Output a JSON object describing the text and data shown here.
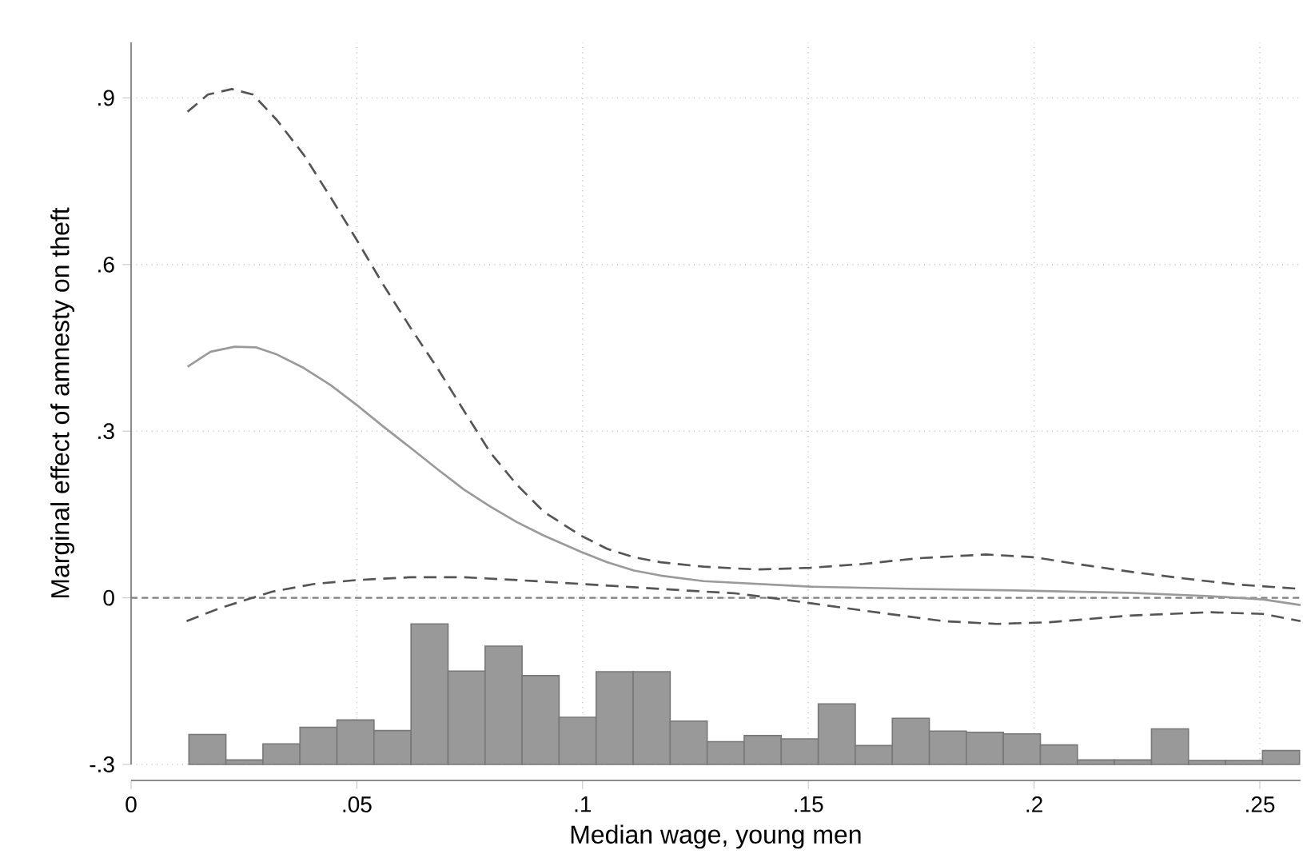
{
  "chart_data": {
    "type": "line",
    "xlabel": "Median wage, young men",
    "ylabel": "Marginal effect of amnesty on theft",
    "xlim": [
      0,
      0.259
    ],
    "ylim": [
      -0.3,
      1.0
    ],
    "xticks": [
      0,
      {
        "value": 0.05,
        "label": ".05"
      },
      {
        "value": 0.1,
        "label": ".1"
      },
      {
        "value": 0.15,
        "label": ".15"
      },
      {
        "value": 0.2,
        "label": ".2"
      },
      {
        "value": 0.25,
        "label": ".25"
      }
    ],
    "yticks": [
      {
        "value": -0.3,
        "label": "-.3"
      },
      0,
      {
        "value": 0.3,
        "label": ".3"
      },
      {
        "value": 0.6,
        "label": ".6"
      },
      {
        "value": 0.9,
        "label": ".9"
      }
    ],
    "grid": true,
    "ref_lines": [
      {
        "axis": "y",
        "value": 0,
        "color": "#808080",
        "line_style": "dashed"
      }
    ],
    "series": [
      {
        "type": "histogram",
        "color": "#999999",
        "bins": [
          0.0128,
          0.021,
          0.0292,
          0.0374,
          0.0456,
          0.0538,
          0.062,
          0.0702,
          0.0784,
          0.0866,
          0.0948,
          0.103,
          0.1112,
          0.1194,
          0.1276,
          0.1358,
          0.144,
          0.1522,
          0.1604,
          0.1686,
          0.1768,
          0.185,
          0.1932,
          0.2014,
          0.2096,
          0.2178,
          0.226,
          0.2342,
          0.2424,
          0.2506,
          0.2588
        ],
        "base": [
          -0.3,
          -0.3,
          -0.3,
          -0.3,
          -0.3,
          -0.3,
          -0.3,
          -0.3,
          -0.3,
          -0.3,
          -0.3,
          -0.3,
          -0.3,
          -0.3,
          -0.3,
          -0.3,
          -0.3,
          -0.3,
          -0.3,
          -0.3,
          -0.3,
          -0.3,
          -0.3,
          -0.3,
          -0.3,
          -0.3,
          -0.3,
          -0.3,
          -0.3,
          -0.3
        ],
        "values": [
          0.054,
          0.008,
          0.037,
          0.067,
          0.08,
          0.061,
          0.253,
          0.168,
          0.213,
          0.16,
          0.085,
          0.167,
          0.167,
          0.078,
          0.041,
          0.052,
          0.046,
          0.109,
          0.034,
          0.083,
          0.06,
          0.058,
          0.055,
          0.035,
          0.008,
          0.008,
          0.064,
          0.007,
          0.007,
          0.025
        ]
      },
      {
        "type": "line",
        "color": "#555555",
        "line_style": "dashed",
        "x": [
          0.0125,
          0.017,
          0.0223,
          0.027,
          0.0323,
          0.0382,
          0.0442,
          0.05,
          0.0559,
          0.0619,
          0.0678,
          0.0737,
          0.0796,
          0.0855,
          0.0914,
          0.0996,
          0.1055,
          0.1114,
          0.1173,
          0.1268,
          0.1386,
          0.1504,
          0.1622,
          0.174,
          0.1893,
          0.2,
          0.2094,
          0.2212,
          0.233,
          0.2448,
          0.259
        ],
        "values": [
          0.875,
          0.906,
          0.916,
          0.906,
          0.86,
          0.798,
          0.721,
          0.644,
          0.563,
          0.486,
          0.414,
          0.337,
          0.261,
          0.203,
          0.155,
          0.112,
          0.088,
          0.073,
          0.064,
          0.056,
          0.051,
          0.054,
          0.061,
          0.071,
          0.078,
          0.073,
          0.061,
          0.047,
          0.035,
          0.024,
          0.016
        ]
      },
      {
        "type": "line",
        "color": "#9a9a9a",
        "line_style": "solid",
        "x": [
          0.0125,
          0.0176,
          0.0229,
          0.0276,
          0.0323,
          0.0382,
          0.0442,
          0.05,
          0.0559,
          0.0619,
          0.0678,
          0.0737,
          0.0796,
          0.0855,
          0.0914,
          0.0996,
          0.1055,
          0.1114,
          0.1173,
          0.1268,
          0.1504,
          0.174,
          0.1976,
          0.2212,
          0.2389,
          0.2507,
          0.259
        ],
        "values": [
          0.416,
          0.443,
          0.452,
          0.451,
          0.438,
          0.414,
          0.383,
          0.347,
          0.308,
          0.27,
          0.232,
          0.195,
          0.164,
          0.136,
          0.112,
          0.083,
          0.064,
          0.049,
          0.04,
          0.03,
          0.02,
          0.016,
          0.013,
          0.009,
          0.003,
          -0.003,
          -0.013
        ]
      },
      {
        "type": "line",
        "color": "#555555",
        "line_style": "dashed",
        "x": [
          0.0123,
          0.0199,
          0.0312,
          0.0406,
          0.05,
          0.0619,
          0.0737,
          0.0855,
          0.0996,
          0.1114,
          0.1232,
          0.1338,
          0.1445,
          0.1622,
          0.1799,
          0.1917,
          0.2035,
          0.2212,
          0.2389,
          0.2507,
          0.259
        ],
        "values": [
          -0.042,
          -0.018,
          0.011,
          0.025,
          0.032,
          0.037,
          0.037,
          0.032,
          0.025,
          0.019,
          0.013,
          0.008,
          -0.003,
          -0.023,
          -0.042,
          -0.047,
          -0.044,
          -0.032,
          -0.026,
          -0.029,
          -0.042
        ]
      }
    ]
  }
}
